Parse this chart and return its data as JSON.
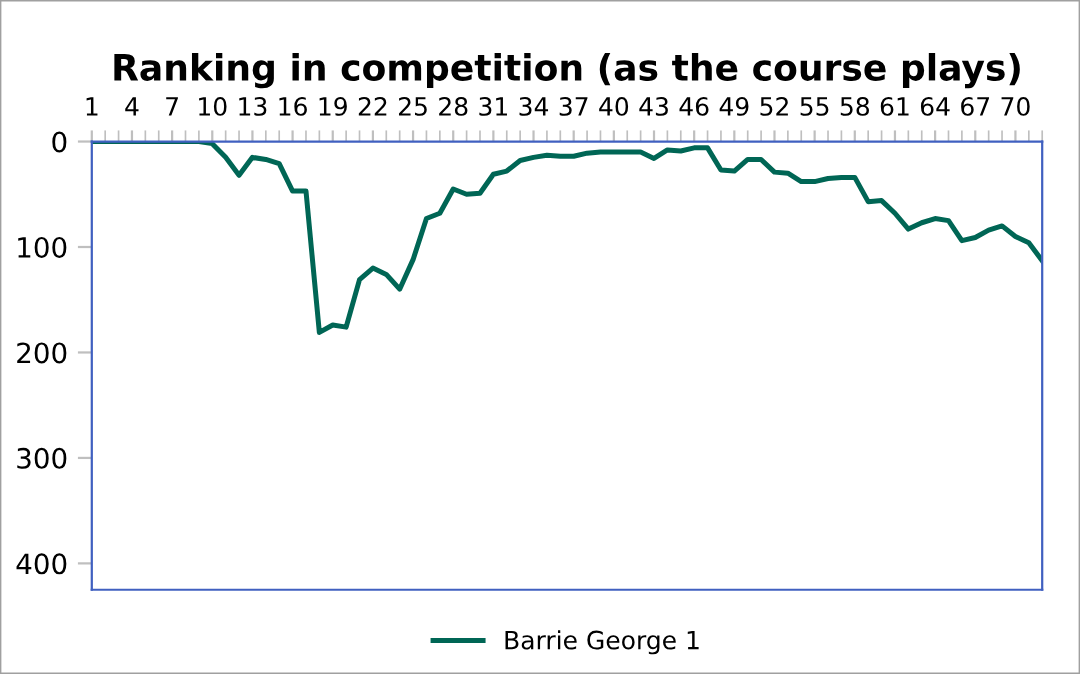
{
  "chart_data": {
    "type": "line",
    "title": "Ranking in competition (as the course plays)",
    "categories": [
      "1",
      null,
      null,
      "4",
      null,
      null,
      "7",
      null,
      null,
      "10",
      null,
      null,
      "13",
      null,
      null,
      "16",
      null,
      null,
      "19",
      null,
      null,
      "22",
      null,
      null,
      "25",
      null,
      null,
      "28",
      null,
      null,
      "31",
      null,
      null,
      "34",
      null,
      null,
      "37",
      null,
      null,
      "40",
      null,
      null,
      "43",
      null,
      null,
      "46",
      null,
      null,
      "49",
      null,
      null,
      "52",
      null,
      null,
      "55",
      null,
      null,
      "58",
      null,
      null,
      "61",
      null,
      null,
      "64",
      null,
      null,
      "67",
      null,
      null,
      "70",
      null,
      null
    ],
    "series": [
      {
        "name": "Barrie George 1",
        "color": "#006655",
        "values": [
          0,
          0,
          0,
          0,
          0,
          0,
          0,
          0,
          0,
          2,
          15,
          32,
          15,
          17,
          21,
          47,
          47,
          181,
          174,
          176,
          131,
          120,
          126,
          140,
          112,
          73,
          68,
          45,
          50,
          49,
          31,
          28,
          18,
          15,
          13,
          14,
          14,
          11,
          10,
          10,
          10,
          10,
          16,
          8,
          9,
          6,
          6,
          27,
          28,
          17,
          17,
          29,
          30,
          38,
          38,
          35,
          34,
          34,
          57,
          56,
          68,
          83,
          77,
          73,
          75,
          94,
          91,
          84,
          80,
          90,
          96,
          113
        ]
      }
    ],
    "ylim": [
      425,
      0
    ],
    "yticks": [
      0,
      100,
      200,
      300,
      400
    ],
    "grid": false,
    "legend": "bottom",
    "marker": "none",
    "line_style": "solid"
  }
}
